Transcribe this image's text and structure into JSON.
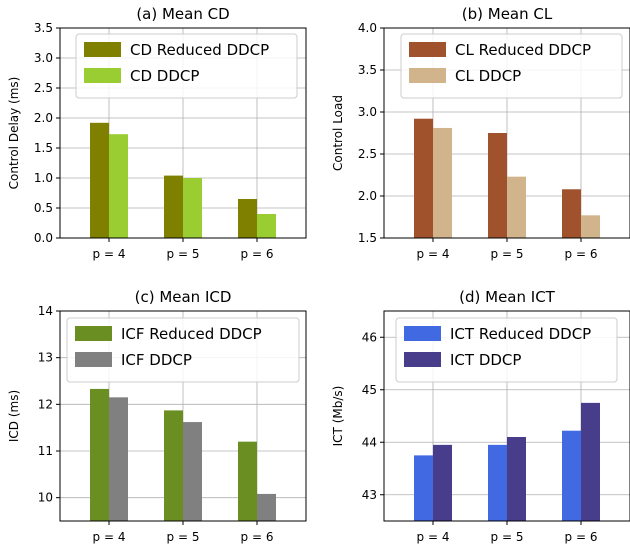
{
  "chart_data": [
    {
      "type": "bar",
      "title": "(a) Mean CD",
      "xlabel": "",
      "ylabel": "Control Delay (ms)",
      "categories": [
        "p = 4",
        "p = 5",
        "p = 6"
      ],
      "ylim": [
        0,
        3.5
      ],
      "yticks": [
        "0.0",
        "0.5",
        "1.0",
        "1.5",
        "2.0",
        "2.5",
        "3.0",
        "3.5"
      ],
      "grid": true,
      "legend_position": "top-right",
      "series": [
        {
          "name": "CD Reduced DDCP",
          "color": "#808000",
          "values": [
            1.92,
            1.04,
            0.65
          ]
        },
        {
          "name": "CD DDCP",
          "color": "#9ACD32",
          "values": [
            1.73,
            1.0,
            0.4
          ]
        }
      ]
    },
    {
      "type": "bar",
      "title": "(b) Mean CL",
      "xlabel": "",
      "ylabel": "Control Load",
      "categories": [
        "p = 4",
        "p = 5",
        "p = 6"
      ],
      "ylim": [
        1.5,
        4.0
      ],
      "yticks": [
        "1.5",
        "2.0",
        "2.5",
        "3.0",
        "3.5",
        "4.0"
      ],
      "grid": true,
      "legend_position": "top-right",
      "series": [
        {
          "name": "CL Reduced DDCP",
          "color": "#A0522D",
          "values": [
            2.92,
            2.75,
            2.08
          ]
        },
        {
          "name": "CL DDCP",
          "color": "#D2B48C",
          "values": [
            2.81,
            2.23,
            1.77
          ]
        }
      ]
    },
    {
      "type": "bar",
      "title": "(c) Mean ICD",
      "xlabel": "",
      "ylabel": "ICD (ms)",
      "categories": [
        "p = 4",
        "p = 5",
        "p = 6"
      ],
      "ylim": [
        9.5,
        14
      ],
      "yticks": [
        "10",
        "11",
        "12",
        "13",
        "14"
      ],
      "grid": true,
      "legend_position": "top-right",
      "series": [
        {
          "name": "ICF Reduced DDCP",
          "color": "#6B8E23",
          "values": [
            12.33,
            11.87,
            11.2
          ]
        },
        {
          "name": "ICF DDCP",
          "color": "#808080",
          "values": [
            12.15,
            11.62,
            10.08
          ]
        }
      ]
    },
    {
      "type": "bar",
      "title": "(d) Mean ICT",
      "xlabel": "",
      "ylabel": "ICT (Mb/s)",
      "categories": [
        "p = 4",
        "p = 5",
        "p = 6"
      ],
      "ylim": [
        42.5,
        46.5
      ],
      "yticks": [
        "43",
        "44",
        "45",
        "46"
      ],
      "grid": true,
      "legend_position": "top-left",
      "series": [
        {
          "name": "ICT Reduced DDCP",
          "color": "#4169E1",
          "values": [
            43.75,
            43.95,
            44.22
          ]
        },
        {
          "name": "ICT DDCP",
          "color": "#483D8B",
          "values": [
            43.95,
            44.1,
            44.75
          ]
        }
      ]
    }
  ]
}
